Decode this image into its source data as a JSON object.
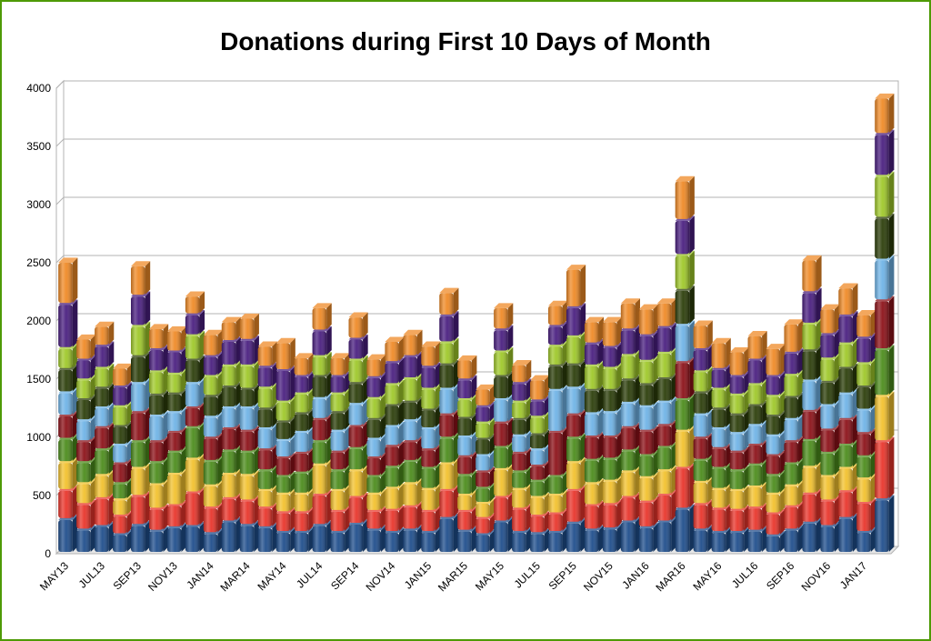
{
  "chart_data": {
    "type": "bar",
    "stacked": true,
    "title": "Donations during First 10 Days of Month",
    "xlabel": "",
    "ylabel": "",
    "ylim": [
      0,
      4000
    ],
    "yticks": [
      0,
      500,
      1000,
      1500,
      2000,
      2500,
      3000,
      3500,
      4000
    ],
    "grid": true,
    "legend": "none",
    "categories": [
      "MAY13",
      "JUN13",
      "JUL13",
      "AUG13",
      "SEP13",
      "OCT13",
      "NOV13",
      "DEC13",
      "JAN14",
      "FEB14",
      "MAR14",
      "APR14",
      "MAY14",
      "JUN14",
      "JUL14",
      "AUG14",
      "SEP14",
      "OCT14",
      "NOV14",
      "DEC14",
      "JAN15",
      "FEB15",
      "MAR15",
      "APR15",
      "MAY15",
      "JUN15",
      "JUL15",
      "AUG15",
      "SEP15",
      "OCT15",
      "NOV15",
      "DEC15",
      "JAN16",
      "FEB16",
      "MAR16",
      "APR16",
      "MAY16",
      "JUN16",
      "JUL16",
      "AUG16",
      "SEP16",
      "OCT16",
      "NOV16",
      "DEC16",
      "JAN17",
      "FEB17"
    ],
    "shown_tick_labels": [
      "MAY13",
      "JUL13",
      "SEP13",
      "NOV13",
      "JAN14",
      "MAR14",
      "MAY14",
      "JUL14",
      "SEP14",
      "NOV14",
      "JAN15",
      "MAR15",
      "MAY15",
      "JUL15",
      "SEP15",
      "NOV15",
      "JAN16",
      "MAR16",
      "MAY16",
      "JUL16",
      "SEP16",
      "NOV16",
      "JAN17"
    ],
    "series": [
      {
        "color": "#1f4e8c",
        "values": [
          290,
          200,
          230,
          160,
          240,
          190,
          220,
          230,
          170,
          270,
          240,
          220,
          180,
          180,
          240,
          180,
          250,
          200,
          180,
          200,
          180,
          300,
          190,
          160,
          270,
          180,
          170,
          180,
          260,
          200,
          210,
          270,
          220,
          270,
          380,
          200,
          180,
          180,
          190,
          150,
          200,
          260,
          230,
          300,
          180,
          460
        ]
      },
      {
        "color": "#e8352b",
        "values": [
          250,
          220,
          240,
          160,
          250,
          190,
          190,
          290,
          220,
          200,
          210,
          170,
          170,
          170,
          260,
          180,
          230,
          160,
          190,
          200,
          180,
          240,
          170,
          140,
          210,
          200,
          150,
          160,
          280,
          210,
          210,
          210,
          220,
          230,
          350,
          220,
          200,
          190,
          200,
          190,
          200,
          250,
          220,
          230,
          250,
          500
        ]
      },
      {
        "color": "#f2c12e",
        "values": [
          240,
          180,
          200,
          140,
          240,
          210,
          270,
          290,
          190,
          210,
          220,
          150,
          160,
          160,
          260,
          180,
          230,
          150,
          190,
          200,
          190,
          230,
          140,
          130,
          240,
          170,
          160,
          160,
          240,
          190,
          200,
          220,
          210,
          210,
          320,
          190,
          170,
          170,
          180,
          170,
          180,
          230,
          210,
          200,
          210,
          390
        ]
      },
      {
        "color": "#4c8c1c",
        "values": [
          200,
          180,
          220,
          140,
          230,
          190,
          190,
          270,
          210,
          200,
          200,
          170,
          150,
          180,
          200,
          170,
          190,
          150,
          180,
          190,
          180,
          220,
          170,
          130,
          190,
          150,
          140,
          160,
          210,
          200,
          190,
          180,
          190,
          200,
          270,
          190,
          180,
          170,
          190,
          160,
          190,
          230,
          200,
          200,
          190,
          400
        ]
      },
      {
        "color": "#8c1118",
        "values": [
          200,
          180,
          190,
          170,
          250,
          180,
          170,
          170,
          200,
          190,
          180,
          180,
          160,
          170,
          190,
          160,
          190,
          160,
          180,
          170,
          160,
          200,
          160,
          140,
          210,
          160,
          130,
          380,
          200,
          200,
          190,
          200,
          210,
          190,
          320,
          190,
          170,
          160,
          170,
          170,
          190,
          250,
          200,
          220,
          200,
          420
        ]
      },
      {
        "color": "#6fb3e6",
        "values": [
          200,
          180,
          170,
          160,
          250,
          220,
          170,
          210,
          180,
          180,
          200,
          180,
          150,
          180,
          180,
          180,
          190,
          160,
          170,
          180,
          180,
          220,
          170,
          140,
          200,
          150,
          140,
          360,
          230,
          200,
          210,
          210,
          210,
          200,
          320,
          200,
          170,
          160,
          170,
          170,
          190,
          260,
          210,
          220,
          200,
          350
        ]
      },
      {
        "color": "#2c3e0a",
        "values": [
          200,
          180,
          170,
          160,
          230,
          180,
          160,
          200,
          180,
          180,
          160,
          170,
          160,
          160,
          190,
          160,
          180,
          170,
          180,
          160,
          160,
          210,
          160,
          140,
          200,
          140,
          130,
          210,
          200,
          200,
          190,
          200,
          190,
          200,
          300,
          190,
          170,
          160,
          170,
          170,
          190,
          260,
          200,
          220,
          200,
          360
        ]
      },
      {
        "color": "#9fc82a",
        "values": [
          180,
          170,
          170,
          170,
          260,
          200,
          170,
          210,
          170,
          180,
          200,
          180,
          170,
          170,
          170,
          160,
          200,
          180,
          180,
          200,
          180,
          190,
          160,
          140,
          210,
          150,
          150,
          170,
          240,
          210,
          190,
          210,
          200,
          220,
          300,
          180,
          170,
          170,
          180,
          170,
          190,
          230,
          200,
          210,
          200,
          360
        ]
      },
      {
        "color": "#4a1f80",
        "values": [
          380,
          170,
          190,
          170,
          260,
          190,
          190,
          180,
          170,
          210,
          220,
          180,
          270,
          150,
          220,
          150,
          180,
          180,
          190,
          190,
          190,
          230,
          170,
          140,
          190,
          160,
          140,
          170,
          250,
          190,
          180,
          220,
          220,
          220,
          300,
          190,
          170,
          160,
          210,
          170,
          190,
          270,
          210,
          240,
          220,
          360
        ]
      },
      {
        "color": "#ef8a27",
        "values": [
          360,
          180,
          170,
          160,
          260,
          180,
          180,
          160,
          190,
          170,
          190,
          180,
          240,
          160,
          200,
          160,
          190,
          160,
          180,
          190,
          180,
          200,
          170,
          150,
          190,
          160,
          180,
          180,
          330,
          190,
          220,
          230,
          230,
          210,
          340,
          210,
          230,
          210,
          210,
          240,
          250,
          280,
          220,
          240,
          200,
          310
        ]
      }
    ]
  },
  "axis": {
    "y_tick_labels": [
      "0",
      "500",
      "1000",
      "1500",
      "2000",
      "2500",
      "3000",
      "3500",
      "4000"
    ]
  }
}
